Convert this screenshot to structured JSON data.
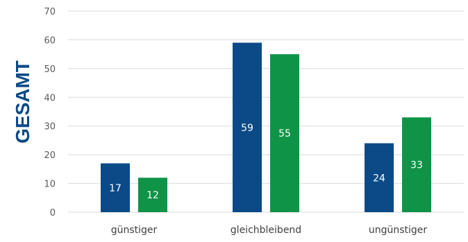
{
  "chart_data": {
    "type": "bar",
    "vertical_label": "GESAMT",
    "categories": [
      "günstiger",
      "gleichbleibend",
      "ungünstiger"
    ],
    "series": [
      {
        "values": [
          17,
          59,
          24
        ],
        "color": "#0B4A86"
      },
      {
        "values": [
          12,
          55,
          33
        ],
        "color": "#0F9447"
      }
    ],
    "ylim": [
      0,
      70
    ],
    "yticks": [
      "0",
      "10",
      "20",
      "30",
      "40",
      "50",
      "60",
      "70"
    ],
    "grid": true,
    "data_labels": true,
    "legend": "none"
  },
  "colors": {
    "title": "#0B4A86",
    "grid": "#D9D9D9"
  }
}
